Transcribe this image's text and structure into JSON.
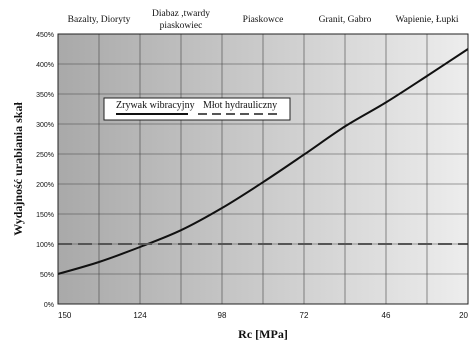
{
  "chart_data": {
    "type": "line",
    "xlabel": "Rc [MPa]",
    "ylabel": "Wydajność urabiania skał",
    "x_reversed": true,
    "xlim": [
      150,
      20
    ],
    "ylim": [
      0,
      450
    ],
    "x_ticks": [
      "150",
      "124",
      "98",
      "72",
      "46",
      "20"
    ],
    "y_ticks": [
      "0%",
      "50%",
      "100%",
      "150%",
      "200%",
      "250%",
      "300%",
      "350%",
      "400%",
      "450%"
    ],
    "grid": true,
    "legend_position": "upper-left",
    "rock_types": [
      {
        "label": "Bazalty, Dioryty",
        "lines": [
          "Bazalty, Dioryty"
        ]
      },
      {
        "label": "Diabaz ,twardy piaskowiec",
        "lines": [
          "Diabaz ,twardy",
          "piaskowiec"
        ]
      },
      {
        "label": "Piaskowce",
        "lines": [
          "Piaskowce"
        ]
      },
      {
        "label": "Granit, Gabro",
        "lines": [
          "Granit, Gabro"
        ]
      },
      {
        "label": "Wapienie, Łupki",
        "lines": [
          "Wapienie, Łupki"
        ]
      }
    ],
    "series": [
      {
        "name": "Zrywak wibracyjny",
        "color": "#111111",
        "style": "solid",
        "x": [
          150,
          137,
          124,
          111,
          98,
          85,
          72,
          59,
          46,
          33,
          20
        ],
        "y": [
          50,
          70,
          95,
          123,
          160,
          203,
          249,
          296,
          336,
          380,
          425
        ]
      },
      {
        "name": "Młot hydrauliczny",
        "color": "#555555",
        "style": "dashed",
        "x": [
          150,
          20
        ],
        "y": [
          100,
          100
        ]
      }
    ]
  }
}
